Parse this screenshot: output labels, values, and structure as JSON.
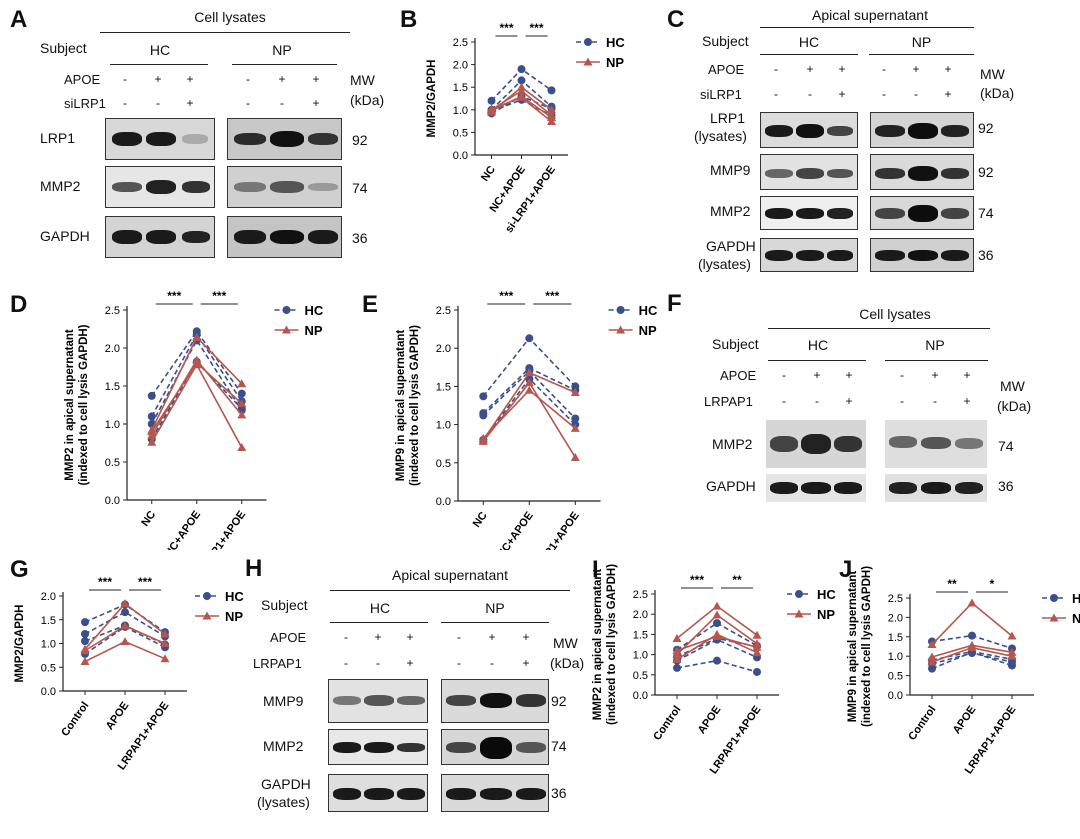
{
  "colors": {
    "hc": "#3a4f8c",
    "np": "#b5574f"
  },
  "legend": {
    "hc": "HC",
    "np": "NP"
  },
  "panelA": {
    "letter": "A",
    "header": "Cell lysates",
    "subject_label": "Subject",
    "groups": [
      "HC",
      "NP"
    ],
    "row_labels": [
      "APOE",
      "siLRP1"
    ],
    "signs": [
      [
        "-",
        "+",
        "+"
      ],
      [
        "-",
        "-",
        "+"
      ]
    ],
    "mw_label": "MW",
    "mw_unit": "(kDa)",
    "blots": [
      {
        "label": "LRP1",
        "mw": "92"
      },
      {
        "label": "MMP2",
        "mw": "74"
      },
      {
        "label": "GAPDH",
        "mw": "36"
      }
    ]
  },
  "panelC": {
    "letter": "C",
    "header": "Apical supernatant",
    "subject_label": "Subject",
    "groups": [
      "HC",
      "NP"
    ],
    "row_labels": [
      "APOE",
      "siLRP1"
    ],
    "signs": [
      [
        "-",
        "+",
        "+"
      ],
      [
        "-",
        "-",
        "+"
      ]
    ],
    "mw_label": "MW",
    "mw_unit": "(kDa)",
    "blots": [
      {
        "label": "LRP1",
        "label2": "(lysates)",
        "mw": "92"
      },
      {
        "label": "MMP9",
        "mw": "92"
      },
      {
        "label": "MMP2",
        "mw": "74"
      },
      {
        "label": "GAPDH",
        "label2": "(lysates)",
        "mw": "36"
      }
    ]
  },
  "panelF": {
    "letter": "F",
    "header": "Cell lysates",
    "subject_label": "Subject",
    "groups": [
      "HC",
      "NP"
    ],
    "row_labels": [
      "APOE",
      "LRPAP1"
    ],
    "signs": [
      [
        "-",
        "+",
        "+"
      ],
      [
        "-",
        "-",
        "+"
      ]
    ],
    "mw_label": "MW",
    "mw_unit": "(kDa)",
    "blots": [
      {
        "label": "MMP2",
        "mw": "74"
      },
      {
        "label": "GAPDH",
        "mw": "36"
      }
    ]
  },
  "panelH": {
    "letter": "H",
    "header": "Apical supernatant",
    "subject_label": "Subject",
    "groups": [
      "HC",
      "NP"
    ],
    "row_labels": [
      "APOE",
      "LRPAP1"
    ],
    "signs": [
      [
        "-",
        "+",
        "+"
      ],
      [
        "-",
        "-",
        "+"
      ]
    ],
    "mw_label": "MW",
    "mw_unit": "(kDa)",
    "blots": [
      {
        "label": "MMP9",
        "mw": "92"
      },
      {
        "label": "MMP2",
        "mw": "74"
      },
      {
        "label": "GAPDH",
        "label2": "(lysates)",
        "mw": "36"
      }
    ]
  },
  "chart_data": [
    {
      "id": "B",
      "type": "line",
      "ylabel": [
        "MMP2/GAPDH"
      ],
      "ylim": [
        0,
        2.5
      ],
      "yticks": [
        "0.0",
        "0.5",
        "1.0",
        "1.5",
        "2.0",
        "2.5"
      ],
      "categories": [
        "NC",
        "NC+APOE",
        "si-LRP1+APOE"
      ],
      "sig": [
        "***",
        "***"
      ],
      "series": [
        {
          "group": "HC",
          "values": [
            1.2,
            1.9,
            1.43
          ]
        },
        {
          "group": "HC",
          "values": [
            1.0,
            1.65,
            1.07
          ]
        },
        {
          "group": "HC",
          "values": [
            0.92,
            1.3,
            1.02
          ]
        },
        {
          "group": "HC",
          "values": [
            0.97,
            1.22,
            0.87
          ]
        },
        {
          "group": "NP",
          "values": [
            0.95,
            1.5,
            1.0
          ]
        },
        {
          "group": "NP",
          "values": [
            1.0,
            1.42,
            0.88
          ]
        },
        {
          "group": "NP",
          "values": [
            0.98,
            1.3,
            0.83
          ]
        },
        {
          "group": "NP",
          "values": [
            1.02,
            1.27,
            0.74
          ]
        }
      ]
    },
    {
      "id": "D",
      "type": "line",
      "ylabel": [
        "MMP2  in apical supernatant",
        "(indexed to cell lysis GAPDH)"
      ],
      "ylim": [
        0,
        2.5
      ],
      "yticks": [
        "0.0",
        "0.5",
        "1.0",
        "1.5",
        "2.0",
        "2.5"
      ],
      "categories": [
        "NC",
        "NC+APOE",
        "si-LRP1+APOE"
      ],
      "sig": [
        "***",
        "***"
      ],
      "series": [
        {
          "group": "HC",
          "values": [
            1.37,
            2.22,
            1.4
          ]
        },
        {
          "group": "HC",
          "values": [
            1.1,
            2.18,
            1.3
          ]
        },
        {
          "group": "HC",
          "values": [
            1.0,
            2.1,
            1.18
          ]
        },
        {
          "group": "HC",
          "values": [
            0.8,
            1.82,
            1.2
          ]
        },
        {
          "group": "NP",
          "values": [
            0.92,
            2.14,
            1.53
          ]
        },
        {
          "group": "NP",
          "values": [
            0.85,
            1.84,
            1.12
          ]
        },
        {
          "group": "NP",
          "values": [
            0.76,
            1.78,
            0.69
          ]
        },
        {
          "group": "NP",
          "values": [
            0.9,
            1.8,
            1.27
          ]
        }
      ]
    },
    {
      "id": "E",
      "type": "line",
      "ylabel": [
        "MMP9  in apical supernatant",
        "(indexed to cell lysis GAPDH)"
      ],
      "ylim": [
        0,
        2.5
      ],
      "yticks": [
        "0.0",
        "0.5",
        "1.0",
        "1.5",
        "2.0",
        "2.5"
      ],
      "categories": [
        "NC",
        "NC+APOE",
        "si-LRP1+APOE"
      ],
      "sig": [
        "***",
        "***"
      ],
      "series": [
        {
          "group": "HC",
          "values": [
            1.37,
            2.13,
            1.5
          ]
        },
        {
          "group": "HC",
          "values": [
            1.15,
            1.74,
            1.45
          ]
        },
        {
          "group": "HC",
          "values": [
            1.12,
            1.7,
            1.08
          ]
        },
        {
          "group": "HC",
          "values": [
            0.8,
            1.6,
            1.0
          ]
        },
        {
          "group": "NP",
          "values": [
            0.8,
            1.68,
            1.42
          ]
        },
        {
          "group": "NP",
          "values": [
            0.78,
            1.55,
            0.57
          ]
        },
        {
          "group": "NP",
          "values": [
            0.82,
            1.45,
            0.95
          ]
        }
      ]
    },
    {
      "id": "G",
      "type": "line",
      "ylabel": [
        "MMP2/GAPDH"
      ],
      "ylim": [
        0,
        2.0
      ],
      "yticks": [
        "0.0",
        "0.5",
        "1.0",
        "1.5",
        "2.0"
      ],
      "categories": [
        "Control",
        "APOE",
        "LRPAP1+APOE"
      ],
      "sig": [
        "***",
        "***"
      ],
      "series": [
        {
          "group": "HC",
          "values": [
            1.45,
            1.82,
            1.24
          ]
        },
        {
          "group": "HC",
          "values": [
            1.2,
            1.66,
            1.15
          ]
        },
        {
          "group": "HC",
          "values": [
            1.05,
            1.38,
            0.98
          ]
        },
        {
          "group": "HC",
          "values": [
            0.78,
            1.35,
            0.92
          ]
        },
        {
          "group": "NP",
          "values": [
            0.88,
            1.84,
            1.2
          ]
        },
        {
          "group": "NP",
          "values": [
            0.85,
            1.37,
            1.0
          ]
        },
        {
          "group": "NP",
          "values": [
            0.62,
            1.04,
            0.68
          ]
        }
      ]
    },
    {
      "id": "I",
      "type": "line",
      "ylabel": [
        "MMP2  in apical supernatant",
        "(indexed to cell lysis GAPDH)"
      ],
      "ylim": [
        0,
        2.5
      ],
      "yticks": [
        "0.0",
        "0.5",
        "1.0",
        "1.5",
        "2.0",
        "2.5"
      ],
      "categories": [
        "Control",
        "APOE",
        "LRPAP1+APOE"
      ],
      "sig": [
        "***",
        "**"
      ],
      "series": [
        {
          "group": "HC",
          "values": [
            1.12,
            1.78,
            1.22
          ]
        },
        {
          "group": "HC",
          "values": [
            0.95,
            1.4,
            1.2
          ]
        },
        {
          "group": "HC",
          "values": [
            0.85,
            1.37,
            0.93
          ]
        },
        {
          "group": "HC",
          "values": [
            0.67,
            0.85,
            0.57
          ]
        },
        {
          "group": "NP",
          "values": [
            1.4,
            2.2,
            1.48
          ]
        },
        {
          "group": "NP",
          "values": [
            1.0,
            1.98,
            1.27
          ]
        },
        {
          "group": "NP",
          "values": [
            0.88,
            1.5,
            1.05
          ]
        },
        {
          "group": "NP",
          "values": [
            1.1,
            1.45,
            1.18
          ]
        }
      ]
    },
    {
      "id": "J",
      "type": "line",
      "ylabel": [
        "MMP9  in apical supernatant",
        "(indexed to cell lysis GAPDH)"
      ],
      "ylim": [
        0,
        2.5
      ],
      "yticks": [
        "0.0",
        "0.5",
        "1.0",
        "1.5",
        "2.0",
        "2.5"
      ],
      "categories": [
        "Control",
        "APOE",
        "LRPAP1+APOE"
      ],
      "sig": [
        "**",
        "*"
      ],
      "series": [
        {
          "group": "HC",
          "values": [
            1.38,
            1.53,
            1.2
          ]
        },
        {
          "group": "HC",
          "values": [
            0.9,
            1.12,
            0.92
          ]
        },
        {
          "group": "HC",
          "values": [
            0.8,
            1.08,
            0.85
          ]
        },
        {
          "group": "HC",
          "values": [
            0.68,
            1.1,
            0.76
          ]
        },
        {
          "group": "NP",
          "values": [
            1.3,
            2.37,
            1.52
          ]
        },
        {
          "group": "NP",
          "values": [
            0.98,
            1.28,
            1.1
          ]
        },
        {
          "group": "NP",
          "values": [
            0.85,
            1.22,
            1.0
          ]
        }
      ]
    }
  ]
}
